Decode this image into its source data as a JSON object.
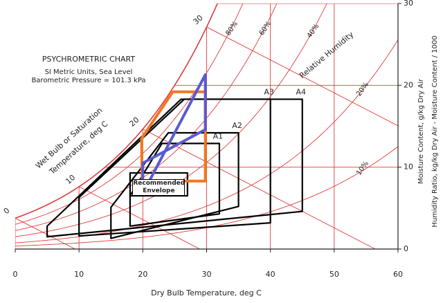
{
  "chart_data": {
    "type": "psychrometric",
    "title": "PSYCHROMETRIC CHART",
    "subtitle": [
      "SI Metric Units, Sea Level",
      "Barometric Pressure = 101.3 kPa"
    ],
    "xlabel": "Dry Bulb Temperature, deg C",
    "ylabel": [
      "Moisture Content, g/kg Dry Air",
      "Humidity Ratio, kg/kg Dry Air - Moisture Content / 1000"
    ],
    "wet_bulb_title": [
      "Wet Bulb or Saturation",
      "Temperature, deg C"
    ],
    "rh_title": "Relative Humidity",
    "xlim": [
      0,
      60
    ],
    "xticks": [
      0,
      10,
      20,
      30,
      40,
      50,
      60
    ],
    "ylim": [
      0,
      30
    ],
    "yticks": [
      0,
      10,
      20,
      30
    ],
    "grid": true,
    "grid_color": "#e03a3a",
    "relative_humidity": [
      {
        "value": 80,
        "label": "80%"
      },
      {
        "value": 60,
        "label": "60%"
      },
      {
        "value": 40,
        "label": "40%"
      },
      {
        "value": 20,
        "label": "20%"
      },
      {
        "value": 10,
        "label": "10%"
      }
    ],
    "wet_bulb": [
      0,
      10,
      20,
      30
    ],
    "series": [
      {
        "name": "A4",
        "color": "#000000",
        "x": [
          5,
          5,
          26,
          45,
          45
        ],
        "y": [
          1.5,
          2.8,
          18.3,
          18.3,
          4.6
        ]
      },
      {
        "name": "A3",
        "color": "#000000",
        "x": [
          10,
          10,
          26.5,
          40,
          40
        ],
        "y": [
          1.6,
          6.3,
          18.3,
          18.3,
          3.2
        ]
      },
      {
        "name": "A2",
        "color": "#000000",
        "x": [
          15,
          15,
          24,
          35,
          35
        ],
        "y": [
          1.3,
          5.1,
          14.2,
          14.2,
          5.2
        ]
      },
      {
        "name": "A1",
        "color": "#000000",
        "x": [
          18,
          18,
          23,
          32,
          32
        ],
        "y": [
          2.8,
          6.5,
          12.9,
          12.9,
          4.3
        ]
      },
      {
        "name": "Recommended Envelope",
        "color": "#000000",
        "x": [
          18,
          18,
          27,
          27
        ],
        "y": [
          6.5,
          9.3,
          9.3,
          6.5
        ]
      },
      {
        "color": "#f07820",
        "x": [
          19.8,
          24.7,
          29.8,
          29.8,
          19.9
        ],
        "y": [
          13.5,
          19.2,
          19.2,
          8.3,
          8.3
        ]
      },
      {
        "color": "#5a5ad0",
        "x": [
          20,
          29.8,
          29.8,
          20
        ],
        "y": [
          6.8,
          21.3,
          14.6,
          10.5
        ]
      }
    ]
  }
}
